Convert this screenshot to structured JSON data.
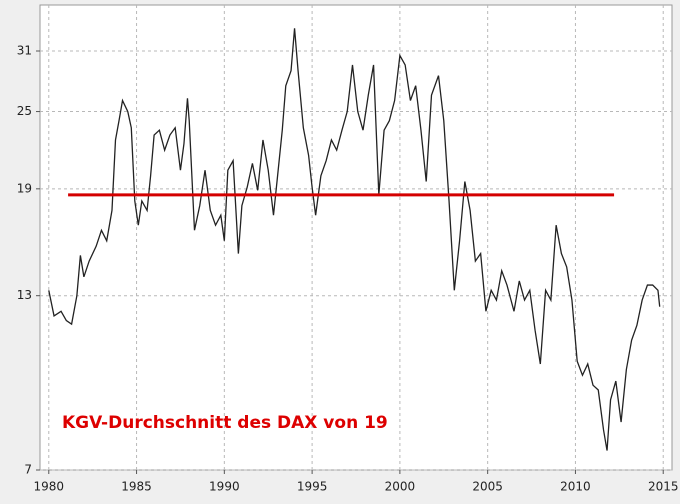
{
  "chart_data": {
    "type": "line",
    "annotation": "KGV-Durchschnitt des DAX von 19",
    "annotation_color": "#dd0000",
    "x": [
      1980.0,
      1980.3,
      1980.7,
      1981.0,
      1981.3,
      1981.6,
      1981.8,
      1982.0,
      1982.3,
      1982.7,
      1983.0,
      1983.3,
      1983.6,
      1983.8,
      1984.0,
      1984.2,
      1984.5,
      1984.7,
      1984.9,
      1985.1,
      1985.3,
      1985.6,
      1985.8,
      1986.0,
      1986.3,
      1986.6,
      1986.9,
      1987.2,
      1987.5,
      1987.7,
      1987.9,
      1988.0,
      1988.3,
      1988.6,
      1988.9,
      1989.2,
      1989.5,
      1989.8,
      1990.0,
      1990.2,
      1990.5,
      1990.8,
      1991.0,
      1991.3,
      1991.6,
      1991.9,
      1992.2,
      1992.5,
      1992.8,
      1993.0,
      1993.3,
      1993.5,
      1993.8,
      1994.0,
      1994.2,
      1994.5,
      1994.8,
      1995.0,
      1995.2,
      1995.5,
      1995.8,
      1996.1,
      1996.4,
      1996.7,
      1997.0,
      1997.3,
      1997.6,
      1997.9,
      1998.2,
      1998.5,
      1998.8,
      1999.1,
      1999.4,
      1999.7,
      2000.0,
      2000.3,
      2000.6,
      2000.9,
      2001.2,
      2001.5,
      2001.8,
      2002.2,
      2002.5,
      2002.8,
      2003.1,
      2003.4,
      2003.7,
      2004.0,
      2004.3,
      2004.6,
      2004.9,
      2005.2,
      2005.5,
      2005.8,
      2006.1,
      2006.5,
      2006.8,
      2007.1,
      2007.4,
      2007.7,
      2008.0,
      2008.3,
      2008.6,
      2008.9,
      2009.2,
      2009.5,
      2009.8,
      2010.1,
      2010.4,
      2010.7,
      2011.0,
      2011.3,
      2011.6,
      2011.8,
      2012.0,
      2012.3,
      2012.6,
      2012.9,
      2013.2,
      2013.5,
      2013.8,
      2014.1,
      2014.4,
      2014.7,
      2014.8
    ],
    "values": [
      13.25,
      12.1,
      12.3,
      11.9,
      11.75,
      13,
      15.0,
      13.9,
      14.7,
      15.5,
      16.4,
      15.8,
      17.6,
      22.6,
      24.2,
      26.0,
      25.0,
      23.6,
      18.2,
      16.7,
      18.2,
      17.6,
      19.9,
      23.0,
      23.4,
      21.8,
      23.0,
      23.6,
      20.3,
      22.3,
      26.2,
      24.2,
      16.4,
      17.9,
      20.3,
      17.6,
      16.7,
      17.3,
      15.8,
      20.3,
      21.0,
      15.1,
      17.9,
      19.1,
      20.8,
      18.9,
      22.6,
      20.3,
      17.3,
      19.5,
      23.4,
      27.4,
      28.9,
      33.6,
      28.9,
      23.6,
      21.4,
      19.1,
      17.3,
      19.9,
      21.0,
      22.6,
      21.8,
      23.4,
      25.0,
      29.5,
      25.0,
      23.4,
      26.5,
      29.5,
      18.6,
      23.4,
      24.2,
      26.0,
      30.5,
      29.5,
      26.0,
      27.4,
      23.4,
      19.5,
      26.5,
      28.4,
      24.2,
      18.2,
      13.25,
      15.8,
      19.5,
      17.6,
      14.7,
      15.1,
      12.3,
      13.25,
      12.8,
      14.2,
      13.5,
      12.3,
      13.7,
      12.8,
      13.25,
      11.5,
      10.2,
      13.25,
      12.8,
      16.7,
      15.1,
      14.4,
      12.8,
      10.3,
      9.8,
      10.2,
      9.46,
      9.3,
      8.07,
      7.5,
      8.98,
      9.6,
      8.3,
      10.0,
      11.1,
      11.7,
      12.8,
      13.5,
      13.5,
      13.25,
      12.5
    ],
    "color": "#222222",
    "hline": {
      "y": 18.6,
      "xmin": 1981.1,
      "xmax": 2012.2,
      "color": "#d40000"
    },
    "xlim": [
      1979.5,
      2015.5
    ],
    "xticks": [
      1980,
      1985,
      1990,
      1995,
      2000,
      2005,
      2010,
      2015
    ],
    "ylim": [
      7,
      36.5
    ],
    "yticks": [
      7,
      13,
      19,
      25,
      31
    ],
    "log_y": true,
    "grid": true
  }
}
